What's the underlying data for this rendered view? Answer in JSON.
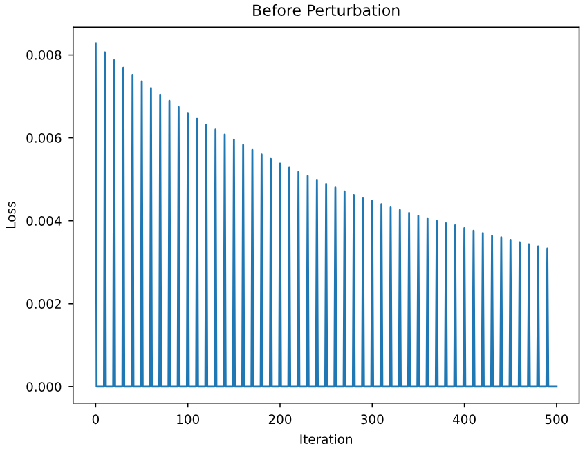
{
  "chart_data": {
    "type": "line",
    "title": "Before Perturbation",
    "xlabel": "Iteration",
    "ylabel": "Loss",
    "series": [
      {
        "color": "#1f77b4",
        "x": [
          0,
          1,
          9,
          10,
          11,
          19,
          20,
          21,
          29,
          30,
          31,
          39,
          40,
          41,
          49,
          50,
          51,
          59,
          60,
          61,
          69,
          70,
          71,
          79,
          80,
          81,
          89,
          90,
          91,
          99,
          100,
          101,
          109,
          110,
          111,
          119,
          120,
          121,
          129,
          130,
          131,
          139,
          140,
          141,
          149,
          150,
          151,
          159,
          160,
          161,
          169,
          170,
          171,
          179,
          180,
          181,
          189,
          190,
          191,
          199,
          200,
          201,
          209,
          210,
          211,
          219,
          220,
          221,
          229,
          230,
          231,
          239,
          240,
          241,
          249,
          250,
          251,
          259,
          260,
          261,
          269,
          270,
          271,
          279,
          280,
          281,
          289,
          290,
          291,
          299,
          300,
          301,
          309,
          310,
          311,
          319,
          320,
          321,
          329,
          330,
          331,
          339,
          340,
          341,
          349,
          350,
          351,
          359,
          360,
          361,
          369,
          370,
          371,
          379,
          380,
          381,
          389,
          390,
          391,
          399,
          400,
          401,
          409,
          410,
          411,
          419,
          420,
          421,
          429,
          430,
          431,
          439,
          440,
          441,
          449,
          450,
          451,
          459,
          460,
          461,
          469,
          470,
          471,
          479,
          480,
          481,
          489,
          490,
          491,
          500
        ],
        "values": [
          0.00828,
          0,
          0,
          0.00806,
          0,
          0,
          0.00787,
          0,
          0,
          0.00769,
          0,
          0,
          0.00752,
          0,
          0,
          0.00736,
          0,
          0,
          0.0072,
          0,
          0,
          0.00704,
          0,
          0,
          0.00689,
          0,
          0,
          0.00674,
          0,
          0,
          0.0066,
          0,
          0,
          0.00646,
          0,
          0,
          0.00632,
          0,
          0,
          0.0062,
          0,
          0,
          0.00608,
          0,
          0,
          0.00596,
          0,
          0,
          0.00583,
          0,
          0,
          0.00571,
          0,
          0,
          0.0056,
          0,
          0,
          0.00549,
          0,
          0,
          0.00538,
          0,
          0,
          0.00528,
          0,
          0,
          0.00518,
          0,
          0,
          0.00508,
          0,
          0,
          0.00499,
          0,
          0,
          0.00489,
          0,
          0,
          0.0048,
          0,
          0,
          0.00471,
          0,
          0,
          0.00462,
          0,
          0,
          0.00454,
          0,
          0,
          0.00448,
          0,
          0,
          0.0044,
          0,
          0,
          0.00432,
          0,
          0,
          0.00426,
          0,
          0,
          0.00419,
          0,
          0,
          0.00412,
          0,
          0,
          0.00406,
          0,
          0,
          0.004,
          0,
          0,
          0.00394,
          0,
          0,
          0.00389,
          0,
          0,
          0.00382,
          0,
          0,
          0.00376,
          0,
          0,
          0.0037,
          0,
          0,
          0.00364,
          0,
          0,
          0.0036,
          0,
          0,
          0.00354,
          0,
          0,
          0.00348,
          0,
          0,
          0.00343,
          0,
          0,
          0.00338,
          0,
          0,
          0.00333,
          0,
          0
        ]
      }
    ],
    "xlim": [
      -24.5,
      524.5
    ],
    "xticks": [
      0,
      100,
      200,
      300,
      400,
      500
    ],
    "ylim": [
      -0.0004,
      0.00867
    ],
    "yticks": [
      {
        "value": 0,
        "label": "0.000"
      },
      {
        "value": 0.002,
        "label": "0.002"
      },
      {
        "value": 0.004,
        "label": "0.004"
      },
      {
        "value": 0.006,
        "label": "0.006"
      },
      {
        "value": 0.008,
        "label": "0.008"
      }
    ],
    "grid": false,
    "legend": false,
    "marker": "none",
    "line_style": "solid"
  }
}
